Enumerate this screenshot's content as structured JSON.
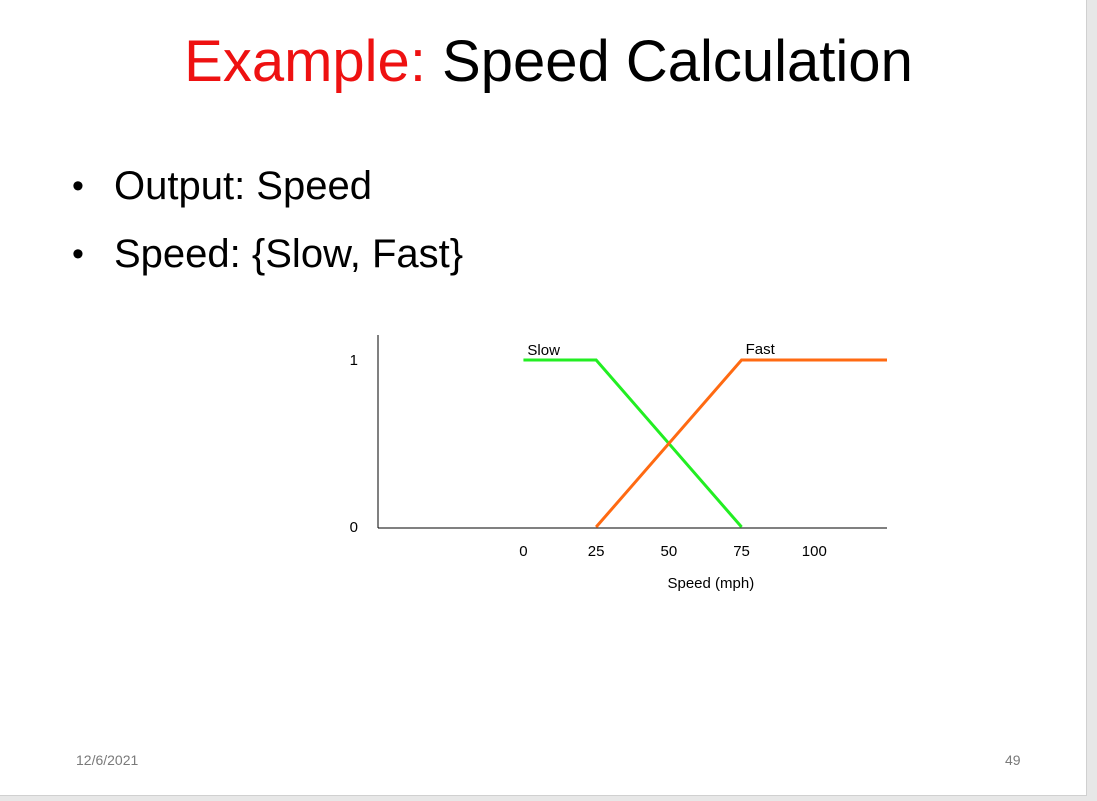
{
  "slide": {
    "title_accent": "Example:",
    "title_rest": " Speed Calculation",
    "bullets": [
      "Output: Speed",
      "Speed: {Slow, Fast}"
    ],
    "footer_date": "12/6/2021",
    "footer_page": "49"
  },
  "colors": {
    "title_accent": "#ee1111",
    "slow_series": "#22ee22",
    "fast_series": "#ff6a12"
  },
  "chart_data": {
    "type": "line",
    "title": "",
    "xlabel": "Speed (mph)",
    "ylabel": "",
    "xlim": [
      -50,
      125
    ],
    "ylim": [
      0,
      1
    ],
    "x_ticks": [
      {
        "value": 0,
        "label": "0"
      },
      {
        "value": 25,
        "label": "25"
      },
      {
        "value": 50,
        "label": "50"
      },
      {
        "value": 75,
        "label": "75"
      },
      {
        "value": 100,
        "label": "100"
      }
    ],
    "y_ticks": [
      {
        "value": 0,
        "label": "0"
      },
      {
        "value": 1,
        "label": "1"
      }
    ],
    "grid": false,
    "series": [
      {
        "name": "Slow",
        "color": "#22ee22",
        "points": [
          [
            0,
            1
          ],
          [
            25,
            1
          ],
          [
            75,
            0
          ]
        ]
      },
      {
        "name": "Fast",
        "color": "#ff6a12",
        "points": [
          [
            25,
            0
          ],
          [
            75,
            1
          ],
          [
            125,
            1
          ]
        ]
      }
    ]
  }
}
